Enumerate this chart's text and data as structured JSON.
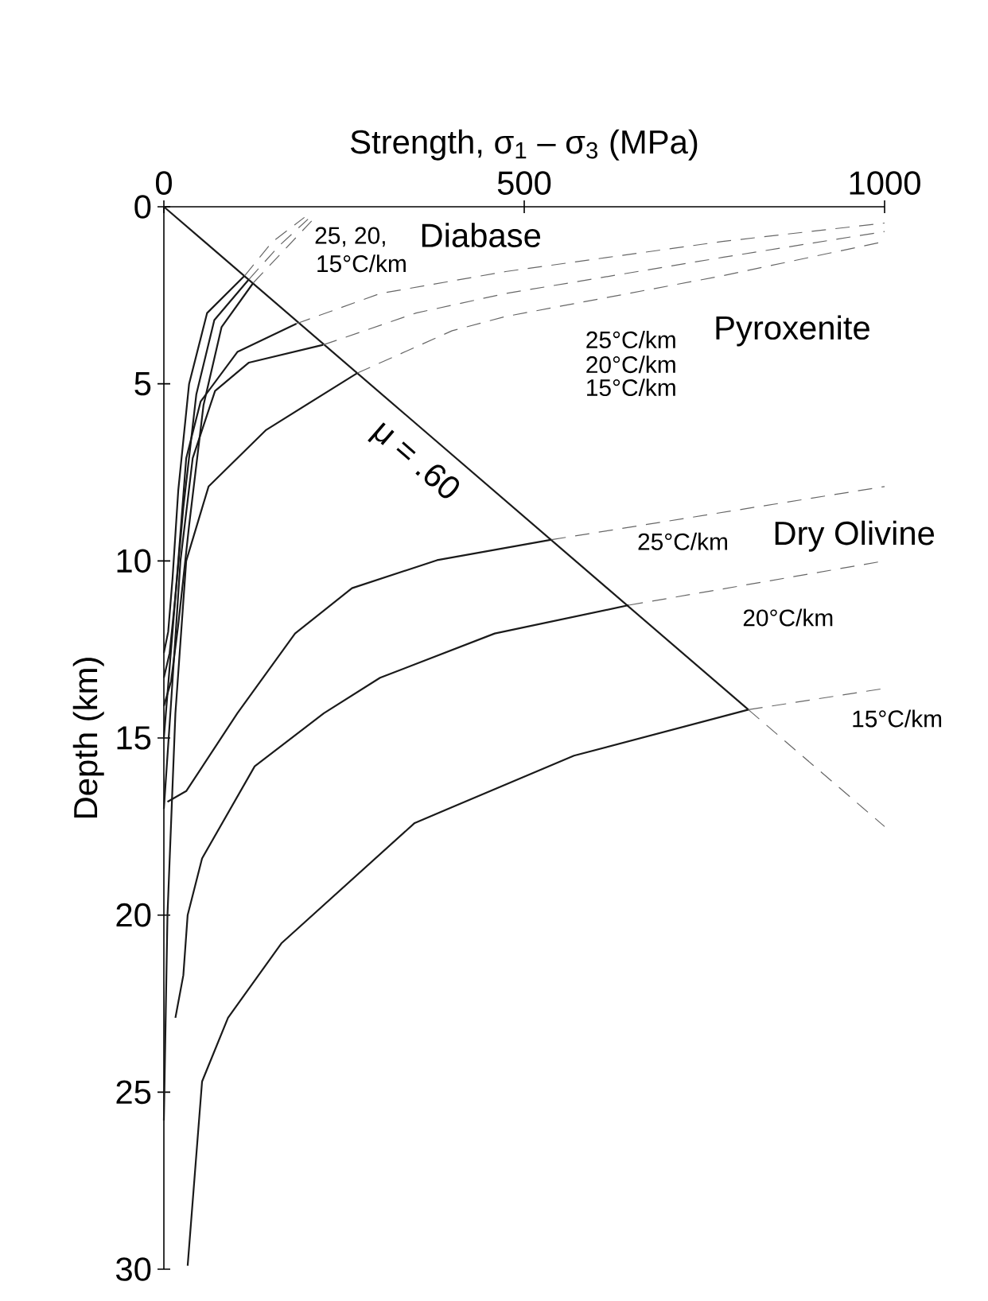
{
  "chart_data": {
    "type": "line",
    "xlabel": "Strength, σ$_{1}$ – σ$_{3}$ (MPa)",
    "ylabel": "Depth (km)",
    "xlim": [
      0,
      1000
    ],
    "ylim": [
      30,
      0
    ],
    "xticks": [
      0,
      500,
      1000
    ],
    "yticks": [
      0,
      5,
      10,
      15,
      20,
      25,
      30
    ],
    "series": [
      {
        "type": "line",
        "color": "#1a1a1a",
        "line_style": "solid",
        "x": [
          0,
          811
        ],
        "values": [
          0,
          14.2
        ]
      },
      {
        "type": "line",
        "color": "#666666",
        "line_style": "dashed",
        "x": [
          811,
          1000
        ],
        "values": [
          14.2,
          17.5
        ]
      },
      {
        "type": "line",
        "color": "#1a1a1a",
        "line_style": "solid",
        "x": [
          112,
          60,
          35,
          20,
          12,
          6,
          0
        ],
        "values": [
          1.95,
          3.0,
          5.0,
          8.0,
          10.5,
          12.0,
          12.6
        ]
      },
      {
        "type": "line",
        "color": "#1a1a1a",
        "line_style": "solid",
        "x": [
          118,
          70,
          45,
          27,
          16,
          8,
          0
        ],
        "values": [
          2.05,
          3.2,
          5.3,
          8.5,
          11,
          12.6,
          13.3
        ]
      },
      {
        "type": "line",
        "color": "#1a1a1a",
        "line_style": "solid",
        "x": [
          124,
          80,
          55,
          35,
          20,
          10,
          0
        ],
        "values": [
          2.15,
          3.4,
          5.6,
          9,
          11.8,
          13.4,
          14.1
        ]
      },
      {
        "type": "line",
        "color": "#666666",
        "line_style": "dashed",
        "x": [
          112,
          150,
          195
        ],
        "values": [
          1.95,
          1.0,
          0.3
        ]
      },
      {
        "type": "line",
        "color": "#666666",
        "line_style": "dashed",
        "x": [
          118,
          160,
          200
        ],
        "values": [
          2.05,
          1.1,
          0.35
        ]
      },
      {
        "type": "line",
        "color": "#666666",
        "line_style": "dashed",
        "x": [
          124,
          168,
          205
        ],
        "values": [
          2.15,
          1.2,
          0.4
        ]
      },
      {
        "type": "line",
        "color": "#1a1a1a",
        "line_style": "solid",
        "x": [
          184,
          102,
          51,
          31,
          20,
          8,
          0
        ],
        "values": [
          3.3,
          4.1,
          5.5,
          7.1,
          10,
          13,
          15
        ]
      },
      {
        "type": "line",
        "color": "#1a1a1a",
        "line_style": "solid",
        "x": [
          221,
          118,
          71,
          40,
          23,
          10,
          0
        ],
        "values": [
          3.9,
          4.4,
          5.2,
          7.1,
          10,
          14,
          17
        ]
      },
      {
        "type": "line",
        "color": "#1a1a1a",
        "line_style": "solid",
        "x": [
          268,
          142,
          62,
          31,
          16,
          5,
          0
        ],
        "values": [
          4.7,
          6.3,
          7.9,
          10,
          14.3,
          20,
          25.8
        ]
      },
      {
        "type": "line",
        "color": "#666666",
        "line_style": "dashed",
        "x": [
          184,
          300,
          474,
          775,
          1000
        ],
        "values": [
          3.3,
          2.45,
          1.83,
          0.98,
          0.46
        ]
      },
      {
        "type": "line",
        "color": "#666666",
        "line_style": "dashed",
        "x": [
          221,
          350,
          474,
          775,
          1000
        ],
        "values": [
          3.9,
          3.0,
          2.45,
          1.43,
          0.7
        ]
      },
      {
        "type": "line",
        "color": "#666666",
        "line_style": "dashed",
        "x": [
          268,
          400,
          474,
          775,
          1000
        ],
        "values": [
          4.7,
          3.5,
          3.1,
          1.95,
          0.98
        ]
      },
      {
        "type": "line",
        "color": "#1a1a1a",
        "line_style": "solid",
        "x": [
          538,
          379,
          261,
          182,
          102,
          31,
          5
        ],
        "values": [
          9.4,
          9.98,
          10.77,
          12.05,
          14.3,
          16.5,
          16.8
        ]
      },
      {
        "type": "line",
        "color": "#1a1a1a",
        "line_style": "solid",
        "x": [
          645,
          459,
          300,
          222,
          126,
          53,
          33,
          27,
          16
        ],
        "values": [
          11.25,
          12.05,
          13.3,
          14.3,
          15.8,
          18.4,
          20.0,
          21.7,
          22.9
        ]
      },
      {
        "type": "line",
        "color": "#1a1a1a",
        "line_style": "solid",
        "x": [
          811,
          569,
          348,
          163,
          89,
          53,
          33
        ],
        "values": [
          14.2,
          15.5,
          17.4,
          20.8,
          22.9,
          24.7,
          29.9
        ]
      },
      {
        "type": "line",
        "color": "#666666",
        "line_style": "dashed",
        "x": [
          538,
          1000
        ],
        "values": [
          9.4,
          7.9
        ]
      },
      {
        "type": "line",
        "color": "#666666",
        "line_style": "dashed",
        "x": [
          645,
          1000
        ],
        "values": [
          11.25,
          10.0
        ]
      },
      {
        "type": "line",
        "color": "#666666",
        "line_style": "dashed",
        "x": [
          811,
          1000
        ],
        "values": [
          14.2,
          13.6
        ]
      }
    ],
    "annotations": [
      "μ = .60",
      "25, 20,",
      "15°C/km",
      "Diabase",
      "25°C/km",
      "20°C/km",
      "15°C/km",
      "Pyroxenite",
      "25°C/km",
      "Dry Olivine",
      "20°C/km",
      "15°C/km"
    ]
  }
}
